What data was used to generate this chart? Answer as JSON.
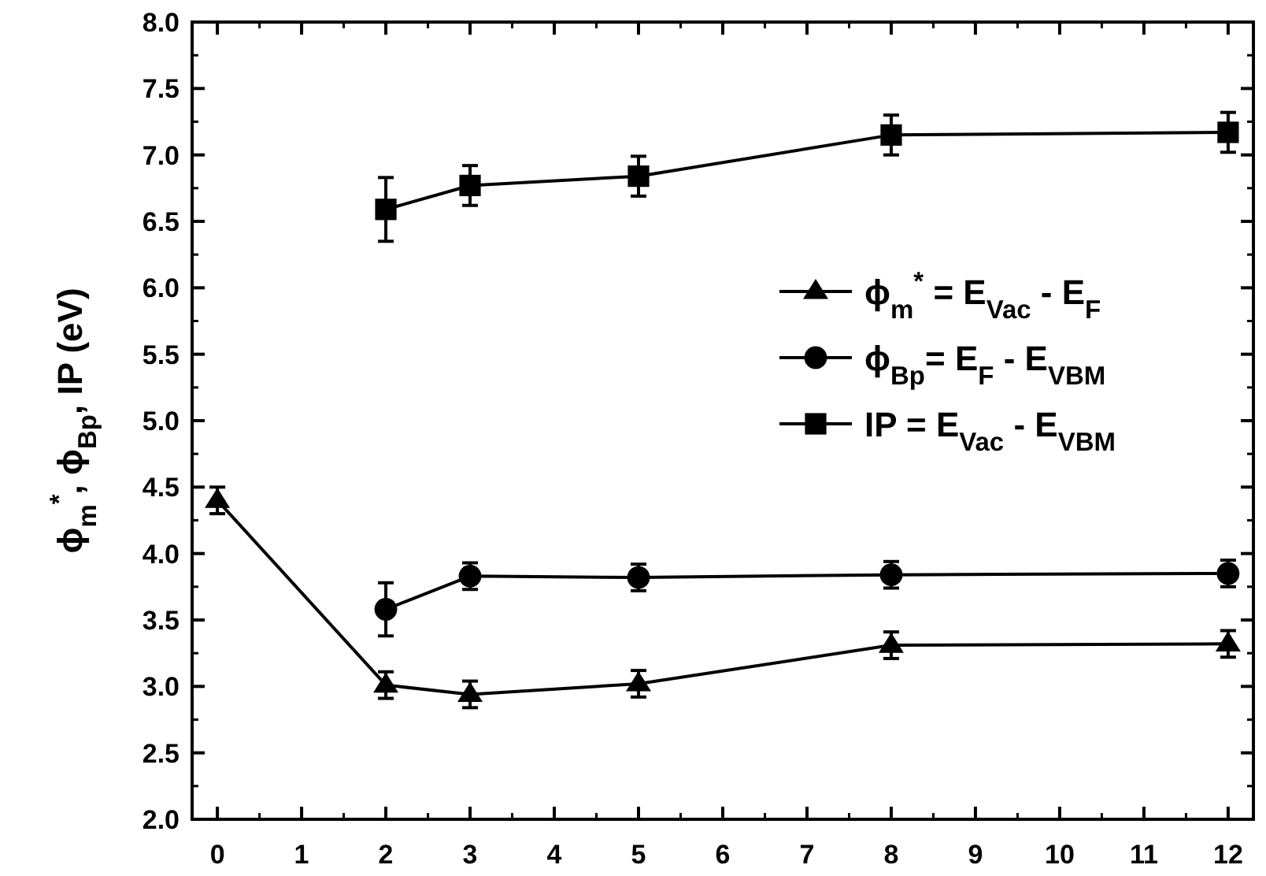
{
  "chart_data": {
    "type": "line",
    "ylabel": "ϕ$_{m}$$^{*}$, ϕ$_{Bp}$, IP  (eV)",
    "x": [
      0,
      2,
      3,
      5,
      8,
      12
    ],
    "xlim": [
      -0.3,
      12.3
    ],
    "xticks": [
      0,
      1,
      2,
      3,
      4,
      5,
      6,
      7,
      8,
      9,
      10,
      11,
      12
    ],
    "ylim": [
      2.0,
      8.0
    ],
    "yticks": [
      {
        "value": 2,
        "label": "2.0"
      },
      {
        "value": 2.5,
        "label": "2.5"
      },
      {
        "value": 3,
        "label": "3.0"
      },
      {
        "value": 3.5,
        "label": "3.5"
      },
      {
        "value": 4,
        "label": "4.0"
      },
      {
        "value": 4.5,
        "label": "4.5"
      },
      {
        "value": 5,
        "label": "5.0"
      },
      {
        "value": 5.5,
        "label": "5.5"
      },
      {
        "value": 6,
        "label": "6.0"
      },
      {
        "value": 6.5,
        "label": "6.5"
      },
      {
        "value": 7,
        "label": "7.0"
      },
      {
        "value": 7.5,
        "label": "7.5"
      },
      {
        "value": 8,
        "label": "8.0"
      }
    ],
    "grid": false,
    "legend": "right",
    "line_style": "solid",
    "series": [
      {
        "name": "ϕ$_{m}$$^{*}$ = E$_{Vac}$ - E$_{F}$",
        "color": "#000000",
        "marker": "triangle",
        "values": [
          4.4,
          3.01,
          2.94,
          3.02,
          3.31,
          3.32
        ],
        "errors": [
          0.1,
          0.1,
          0.1,
          0.1,
          0.1,
          0.1
        ]
      },
      {
        "name": "ϕ$_{Bp}$= E$_{F}$ - E$_{VBM}$",
        "color": "#000000",
        "marker": "circle",
        "values": [
          null,
          3.58,
          3.83,
          3.82,
          3.84,
          3.85
        ],
        "errors": [
          null,
          0.2,
          0.1,
          0.1,
          0.1,
          0.1
        ]
      },
      {
        "name": "IP  = E$_{Vac}$ - E$_{VBM}$",
        "color": "#000000",
        "marker": "square",
        "values": [
          null,
          6.59,
          6.77,
          6.84,
          7.15,
          7.17
        ],
        "errors": [
          null,
          0.24,
          0.15,
          0.15,
          0.15,
          0.15
        ]
      }
    ]
  }
}
